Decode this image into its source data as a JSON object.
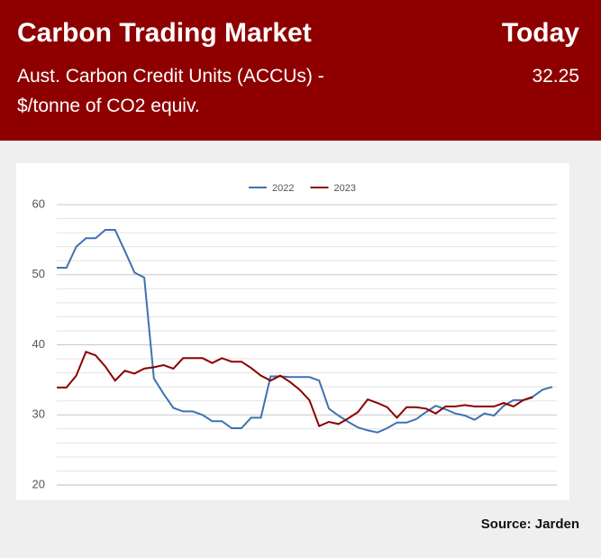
{
  "header": {
    "title": "Carbon Trading Market",
    "subtitle": "Aust. Carbon Credit Units (ACCUs) - $/tonne of CO2 equiv.",
    "today_label": "Today",
    "today_value": "32.25"
  },
  "chart_data": {
    "type": "line",
    "categories": [
      null,
      null,
      null,
      null,
      null,
      null,
      null,
      null,
      null,
      null,
      null,
      null,
      null,
      null,
      null,
      null,
      null,
      null,
      null,
      null,
      null,
      null,
      null,
      null,
      null,
      null,
      null,
      null,
      null,
      null,
      null,
      null,
      null,
      null,
      null,
      null,
      null,
      null,
      null,
      null,
      null,
      null,
      null,
      null,
      null,
      null,
      null,
      null,
      null,
      null,
      null,
      null
    ],
    "series": [
      {
        "name": "2022",
        "color": "#3f72b0",
        "values": [
          51,
          51,
          54,
          55.2,
          55.2,
          56.4,
          56.4,
          53.4,
          50.3,
          49.6,
          35.2,
          33,
          31,
          30.5,
          30.5,
          30,
          29.1,
          29.1,
          28.1,
          28.1,
          29.6,
          29.6,
          35.5,
          35.5,
          35.4,
          35.4,
          35.4,
          34.9,
          30.9,
          29.9,
          29,
          28.2,
          27.8,
          27.5,
          28.1,
          28.9,
          28.9,
          29.4,
          30.4,
          31.3,
          30.8,
          30.2,
          29.9,
          29.3,
          30.2,
          29.9,
          31.3,
          32.1,
          32.1,
          32.6,
          33.6,
          34
        ]
      },
      {
        "name": "2023",
        "color": "#8b0000",
        "values": [
          33.9,
          33.9,
          35.6,
          39,
          38.5,
          36.9,
          34.9,
          36.3,
          35.9,
          36.6,
          36.8,
          37.1,
          36.6,
          38.1,
          38.1,
          38.1,
          37.4,
          38.1,
          37.6,
          37.6,
          36.7,
          35.6,
          34.9,
          35.6,
          34.7,
          33.6,
          32.1,
          28.4,
          29,
          28.7,
          29.5,
          30.4,
          32.2,
          31.7,
          31.1,
          29.6,
          31.1,
          31.1,
          30.9,
          30.2,
          31.2,
          31.2,
          31.4,
          31.2,
          31.2,
          31.2,
          31.7,
          31.2,
          32.1,
          32.5,
          null,
          null
        ]
      }
    ],
    "ylim": [
      20,
      60
    ],
    "yticks": [
      20,
      30,
      40,
      50,
      60
    ],
    "minor_yticks": [
      22,
      24,
      26,
      28,
      32,
      34,
      36,
      38,
      42,
      44,
      46,
      48,
      52,
      54,
      56,
      58
    ],
    "grid": true,
    "legend": "top"
  },
  "source": "Source: Jarden"
}
